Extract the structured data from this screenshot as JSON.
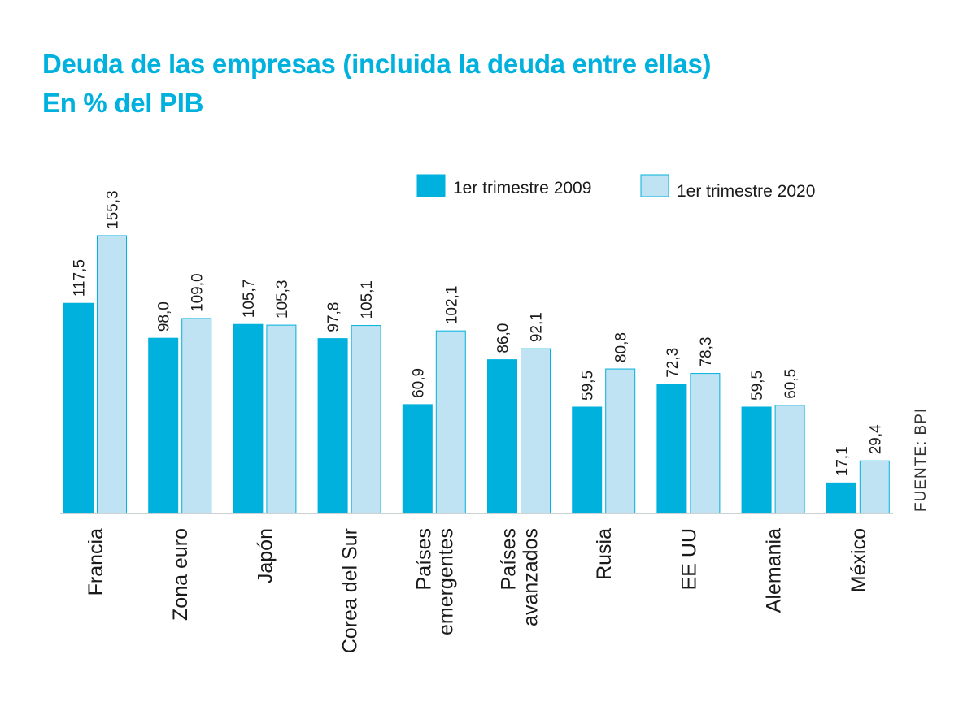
{
  "chart_data": {
    "type": "bar",
    "title": "Deuda de las empresas (incluida la deuda entre ellas)",
    "subtitle": "En % del PIB",
    "categories": [
      [
        "Francia"
      ],
      [
        "Zona euro"
      ],
      [
        "Japón"
      ],
      [
        "Corea del Sur"
      ],
      [
        "Países",
        "emergentes"
      ],
      [
        "Países",
        "avanzados"
      ],
      [
        "Rusia"
      ],
      [
        "EE UU"
      ],
      [
        "Alemania"
      ],
      [
        "México"
      ]
    ],
    "series": [
      {
        "name": "1er trimestre 2009",
        "color": "#00b1dd",
        "values": [
          117.5,
          98.0,
          105.7,
          97.8,
          60.9,
          86.0,
          59.5,
          72.3,
          59.5,
          17.1
        ],
        "labels": [
          "117,5",
          "98,0",
          "105,7",
          "97,8",
          "60,9",
          "86,0",
          "59,5",
          "72,3",
          "59,5",
          "17,1"
        ]
      },
      {
        "name": "1er trimestre 2020",
        "color": "#bfe3f3",
        "stroke": "#00b1dd",
        "values": [
          155.3,
          109.0,
          105.3,
          105.1,
          102.1,
          92.1,
          80.8,
          78.3,
          60.5,
          29.4
        ],
        "labels": [
          "155,3",
          "109,0",
          "105,3",
          "105,1",
          "102,1",
          "92,1",
          "80,8",
          "78,3",
          "60,5",
          "29,4"
        ]
      }
    ],
    "ylim": [
      0,
      155.3
    ],
    "legend_position": "top-right",
    "grid": false,
    "source": "FUENTE: BPI"
  },
  "colors": {
    "title": "#00b1dd",
    "text": "#1a1a1a"
  }
}
